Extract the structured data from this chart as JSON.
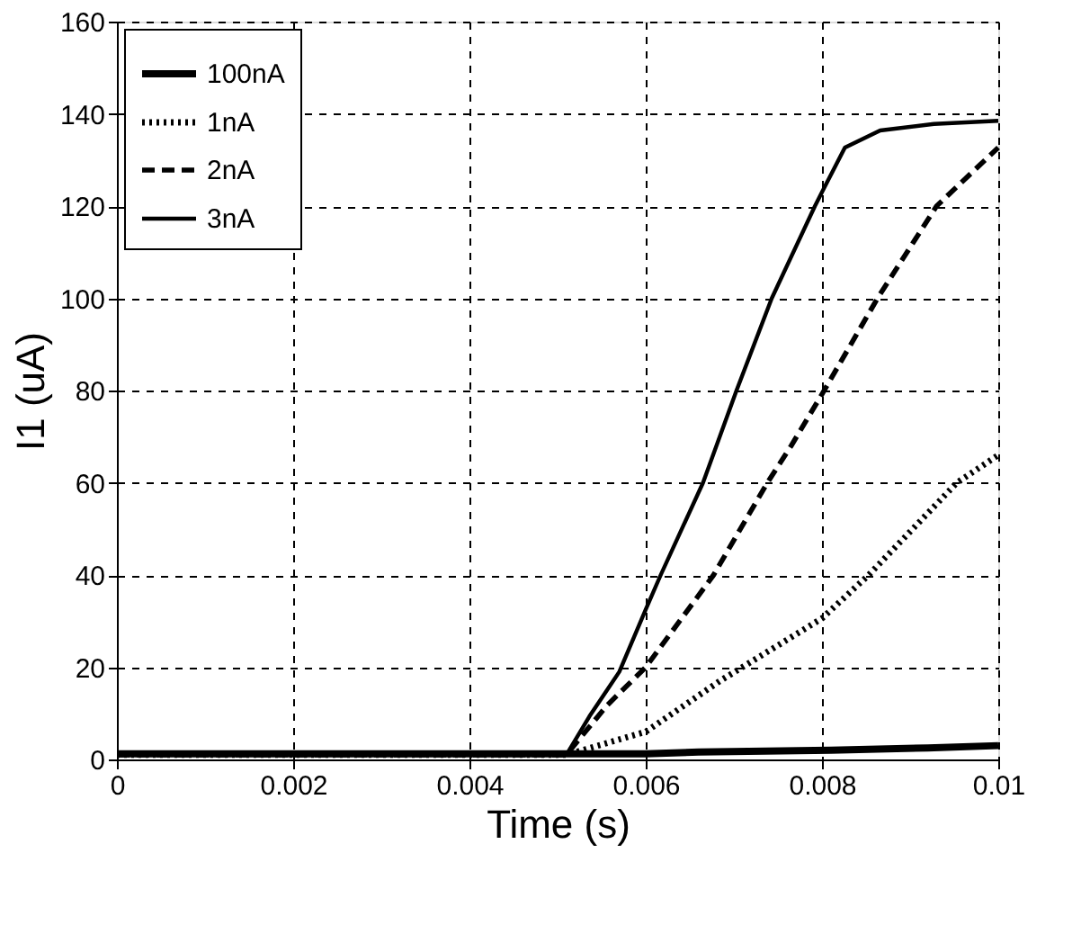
{
  "chart_data": {
    "type": "line",
    "xlabel": "Time (s)",
    "ylabel": "I1 (uA)",
    "xlim": [
      0,
      0.01
    ],
    "xticks": [
      {
        "value": 0,
        "label": "0"
      },
      0.002,
      0.004,
      0.006,
      0.008,
      {
        "value": 0.01,
        "label": "0.01"
      }
    ],
    "ylim": [
      0,
      160
    ],
    "yticks": [
      0,
      20,
      40,
      60,
      80,
      100,
      120,
      140,
      160
    ],
    "grid": true,
    "legend": "top left",
    "marker": "none",
    "series": [
      {
        "name": "100nA",
        "color": "#000000",
        "line_style": "solid",
        "x": [
          0,
          0.006,
          0.0066,
          0.0081,
          0.0092,
          0.01
        ],
        "values": [
          1.2,
          1.2,
          1.6,
          2,
          2.5,
          3
        ]
      },
      {
        "name": "1nA",
        "color": "#000000",
        "line_style": "dotted",
        "x": [
          0,
          0.0051,
          0.006,
          0.00684,
          0.008,
          0.00853,
          0.00953,
          0.01
        ],
        "values": [
          1,
          1,
          6,
          17,
          30.6,
          40,
          60,
          66
        ]
      },
      {
        "name": "2nA",
        "color": "#000000",
        "line_style": "dashed",
        "x": [
          0,
          0.0051,
          0.00556,
          0.006,
          0.00677,
          0.00738,
          0.00765,
          0.008,
          0.00863,
          0.0093,
          0.01
        ],
        "values": [
          1,
          1,
          11.7,
          20,
          40,
          60,
          68,
          79.2,
          100,
          120,
          132.7
        ]
      },
      {
        "name": "3nA",
        "color": "#000000",
        "line_style": "solid",
        "x": [
          0,
          0.0051,
          0.00536,
          0.0057,
          0.006,
          0.00617,
          0.00665,
          0.00703,
          0.00743,
          0.00792,
          0.008,
          0.00826,
          0.00866,
          0.00927,
          0.01
        ],
        "values": [
          1,
          1,
          9.3,
          19,
          32.5,
          40,
          60,
          80,
          100,
          120,
          123,
          132.7,
          136.4,
          137.8,
          138.5
        ]
      }
    ]
  }
}
